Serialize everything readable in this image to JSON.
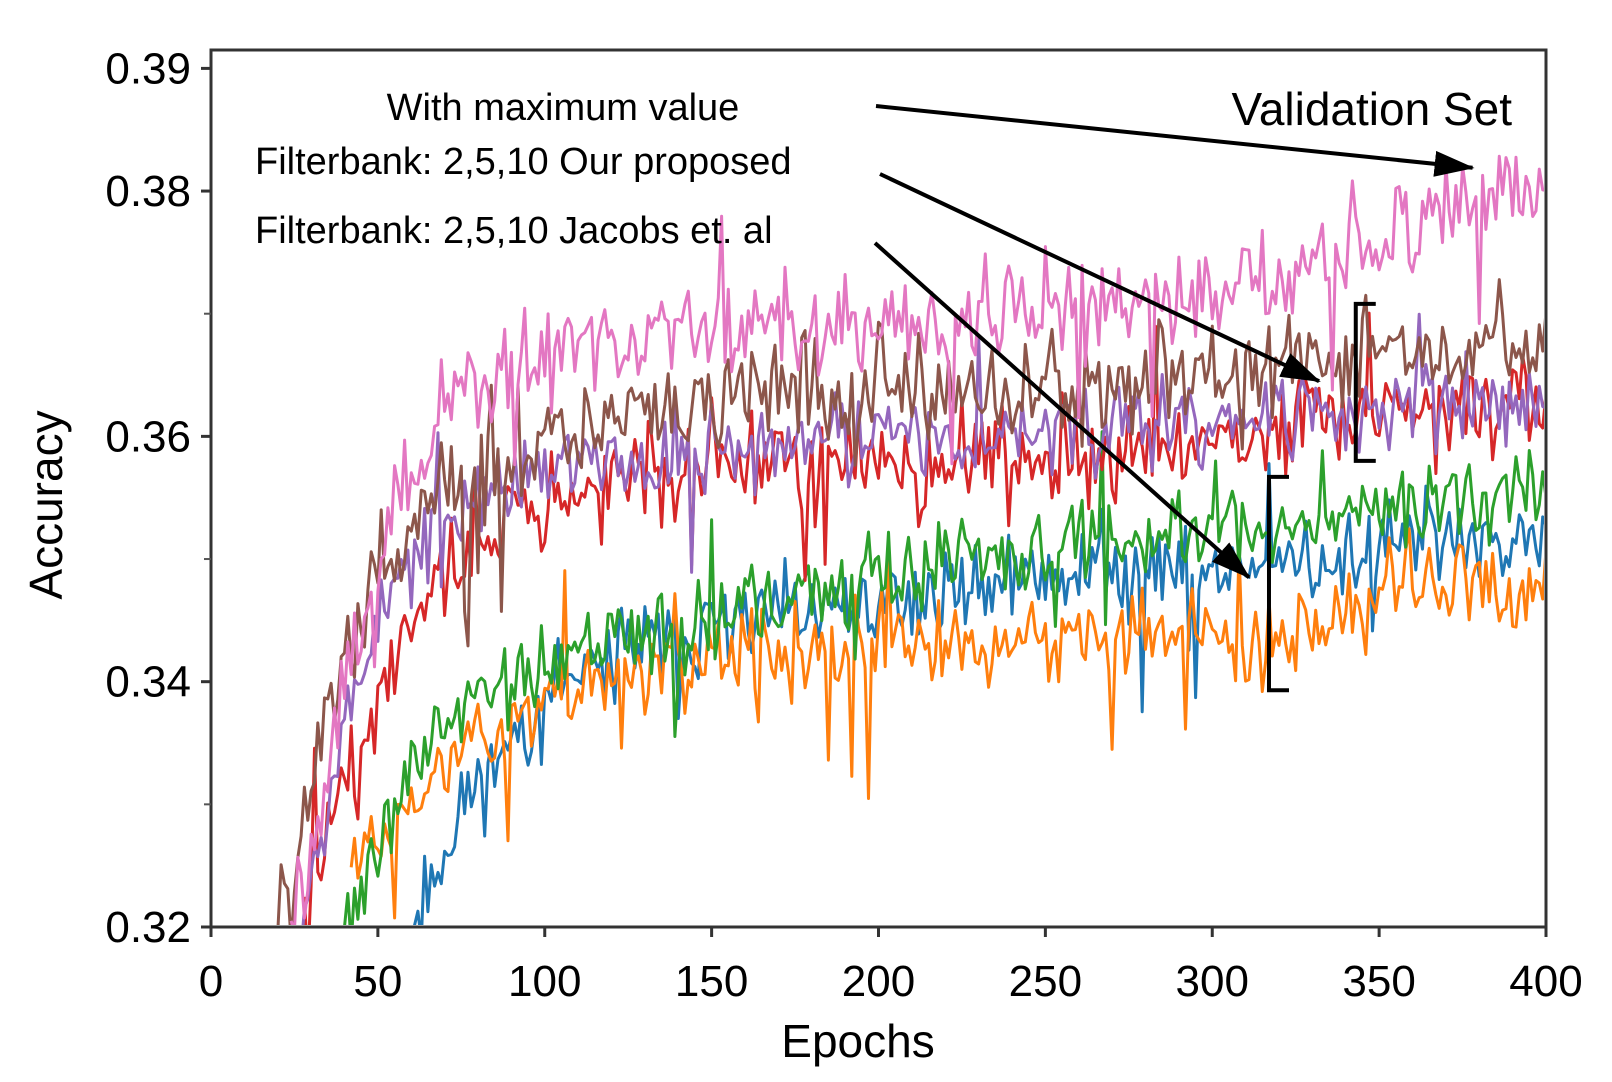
{
  "chart_data": {
    "type": "line",
    "title": "Validation Set",
    "xlabel": "Epochs",
    "ylabel": "Accuracy",
    "xlim": [
      0,
      400
    ],
    "ylim": [
      0.32,
      0.3915
    ],
    "x_ticks": [
      "0",
      "50",
      "100",
      "150",
      "200",
      "250",
      "300",
      "350",
      "400"
    ],
    "x_tick_values": [
      0,
      50,
      100,
      150,
      200,
      250,
      300,
      350,
      400
    ],
    "y_ticks": [
      "0.32",
      "0.34",
      "0.36",
      "0.38",
      "0.39"
    ],
    "y_tick_values": [
      0.32,
      0.34,
      0.36,
      0.38,
      0.39
    ],
    "y_minor_tick_values": [
      0.33,
      0.35,
      0.37
    ],
    "grid": false,
    "annotations": [
      {
        "text": "With maximum value",
        "target": "pink"
      },
      {
        "text": "Filterbank: 2,5,10 Our proposed",
        "target": "upper-group"
      },
      {
        "text": "Filterbank: 2,5,10 Jacobs et. al",
        "target": "lower-group"
      }
    ],
    "annotation_targets": {
      "pink": [
        378,
        0.3819
      ],
      "upper-group": [
        332,
        0.3645
      ],
      "lower-group": [
        311,
        0.3485
      ]
    },
    "brackets": [
      {
        "group": "upper-group",
        "x": 343,
        "y_range": [
          0.358,
          0.3708
        ]
      },
      {
        "group": "lower-group",
        "x": 317,
        "y_range": [
          0.3393,
          0.3567
        ]
      }
    ],
    "series": [
      {
        "name": "blue",
        "color": "#1f77b4",
        "start_epoch": 58,
        "keypoints": [
          [
            58,
            0.318
          ],
          [
            75,
            0.33
          ],
          [
            100,
            0.338
          ],
          [
            130,
            0.343
          ],
          [
            160,
            0.345
          ],
          [
            200,
            0.346
          ],
          [
            230,
            0.348
          ],
          [
            260,
            0.349
          ],
          [
            300,
            0.3495
          ],
          [
            330,
            0.35
          ],
          [
            360,
            0.352
          ],
          [
            400,
            0.352
          ]
        ],
        "noise": 0.0022,
        "seed": 11
      },
      {
        "name": "orange",
        "color": "#ff7f0e",
        "start_epoch": 42,
        "keypoints": [
          [
            42,
            0.326
          ],
          [
            60,
            0.33
          ],
          [
            80,
            0.336
          ],
          [
            100,
            0.339
          ],
          [
            130,
            0.341
          ],
          [
            160,
            0.342
          ],
          [
            200,
            0.3425
          ],
          [
            230,
            0.343
          ],
          [
            280,
            0.344
          ],
          [
            320,
            0.3435
          ],
          [
            345,
            0.346
          ],
          [
            360,
            0.348
          ],
          [
            400,
            0.347
          ]
        ],
        "noise": 0.0022,
        "seed": 23
      },
      {
        "name": "green",
        "color": "#2ca02c",
        "start_epoch": 38,
        "keypoints": [
          [
            38,
            0.319
          ],
          [
            55,
            0.33
          ],
          [
            70,
            0.337
          ],
          [
            90,
            0.34
          ],
          [
            120,
            0.343
          ],
          [
            150,
            0.345
          ],
          [
            190,
            0.348
          ],
          [
            230,
            0.35
          ],
          [
            280,
            0.352
          ],
          [
            320,
            0.353
          ],
          [
            350,
            0.354
          ],
          [
            400,
            0.355
          ]
        ],
        "noise": 0.0022,
        "seed": 37
      },
      {
        "name": "red",
        "color": "#d62728",
        "start_epoch": 28,
        "keypoints": [
          [
            28,
            0.32
          ],
          [
            45,
            0.336
          ],
          [
            60,
            0.346
          ],
          [
            80,
            0.352
          ],
          [
            110,
            0.356
          ],
          [
            150,
            0.357
          ],
          [
            200,
            0.358
          ],
          [
            250,
            0.3585
          ],
          [
            300,
            0.359
          ],
          [
            330,
            0.361
          ],
          [
            360,
            0.362
          ],
          [
            400,
            0.363
          ]
        ],
        "noise": 0.0024,
        "seed": 41
      },
      {
        "name": "purple",
        "color": "#9467bd",
        "start_epoch": 26,
        "keypoints": [
          [
            26,
            0.32
          ],
          [
            45,
            0.342
          ],
          [
            60,
            0.35
          ],
          [
            80,
            0.355
          ],
          [
            110,
            0.358
          ],
          [
            150,
            0.359
          ],
          [
            200,
            0.36
          ],
          [
            250,
            0.361
          ],
          [
            300,
            0.361
          ],
          [
            330,
            0.362
          ],
          [
            360,
            0.3625
          ],
          [
            400,
            0.363
          ]
        ],
        "noise": 0.0022,
        "seed": 53
      },
      {
        "name": "brown",
        "color": "#8c564b",
        "start_epoch": 18,
        "keypoints": [
          [
            18,
            0.32
          ],
          [
            35,
            0.337
          ],
          [
            50,
            0.349
          ],
          [
            70,
            0.355
          ],
          [
            100,
            0.36
          ],
          [
            150,
            0.363
          ],
          [
            200,
            0.364
          ],
          [
            250,
            0.3645
          ],
          [
            300,
            0.365
          ],
          [
            330,
            0.366
          ],
          [
            360,
            0.367
          ],
          [
            400,
            0.368
          ]
        ],
        "noise": 0.0024,
        "seed": 67
      },
      {
        "name": "pink",
        "color": "#e377c2",
        "start_epoch": 24,
        "keypoints": [
          [
            24,
            0.32
          ],
          [
            40,
            0.34
          ],
          [
            55,
            0.355
          ],
          [
            70,
            0.363
          ],
          [
            90,
            0.366
          ],
          [
            120,
            0.368
          ],
          [
            160,
            0.3685
          ],
          [
            200,
            0.369
          ],
          [
            250,
            0.37
          ],
          [
            300,
            0.3715
          ],
          [
            320,
            0.373
          ],
          [
            345,
            0.375
          ],
          [
            360,
            0.3765
          ],
          [
            375,
            0.379
          ],
          [
            385,
            0.381
          ],
          [
            400,
            0.38
          ]
        ],
        "noise": 0.0026,
        "seed": 79
      }
    ]
  }
}
